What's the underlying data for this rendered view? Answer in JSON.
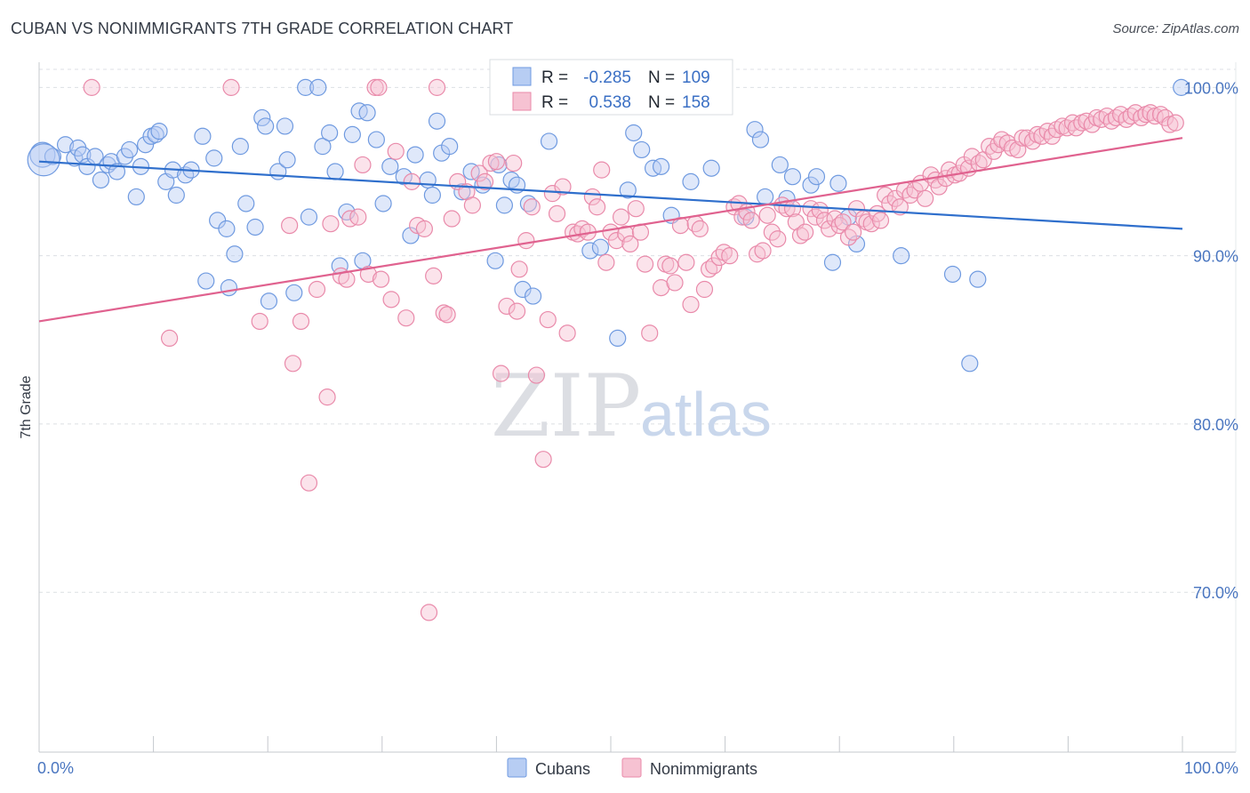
{
  "title": "CUBAN VS NONIMMIGRANTS 7TH GRADE CORRELATION CHART",
  "source": "Source: ZipAtlas.com",
  "watermark": {
    "zip": "ZIP",
    "atlas": "atlas"
  },
  "chart_data": {
    "type": "scatter",
    "title": "CUBAN VS NONIMMIGRANTS 7TH GRADE CORRELATION CHART",
    "xlabel": "",
    "ylabel": "7th Grade",
    "xlim": [
      0,
      100
    ],
    "ylim": [
      60.5,
      101.5
    ],
    "x_ticks": [
      {
        "value": 0,
        "label": "0.0%"
      },
      {
        "value": 100,
        "label": "100.0%"
      }
    ],
    "y_ticks": [
      {
        "value": 100,
        "label": "100.0%"
      },
      {
        "value": 90,
        "label": "90.0%"
      },
      {
        "value": 80,
        "label": "80.0%"
      },
      {
        "value": 70,
        "label": "70.0%"
      }
    ],
    "grid": true,
    "legend_position": "bottom-center",
    "stats": [
      {
        "r_label": "R =",
        "r": "-0.285",
        "n_label": "N =",
        "n": "109"
      },
      {
        "r_label": "R =",
        "r": "0.538",
        "n_label": "N =",
        "n": "158"
      }
    ],
    "series": [
      {
        "name": "Cubans",
        "color": "#6f9ae0",
        "fill": "#b7cdf3",
        "trend": [
          [
            0,
            95.6
          ],
          [
            100,
            91.6
          ]
        ],
        "points": [
          [
            0.3,
            96.0
          ],
          [
            1.2,
            95.9
          ],
          [
            2.3,
            96.6
          ],
          [
            3.1,
            95.8
          ],
          [
            3.4,
            96.4
          ],
          [
            3.8,
            96.0
          ],
          [
            4.2,
            95.3
          ],
          [
            4.9,
            95.9
          ],
          [
            5.4,
            94.5
          ],
          [
            6.0,
            95.4
          ],
          [
            6.3,
            95.6
          ],
          [
            6.8,
            95.0
          ],
          [
            7.5,
            95.9
          ],
          [
            7.9,
            96.3
          ],
          [
            8.5,
            93.5
          ],
          [
            8.9,
            95.3
          ],
          [
            9.3,
            96.6
          ],
          [
            9.8,
            97.1
          ],
          [
            10.2,
            97.2
          ],
          [
            10.5,
            97.4
          ],
          [
            11.1,
            94.4
          ],
          [
            11.7,
            95.1
          ],
          [
            12.0,
            93.6
          ],
          [
            12.8,
            94.8
          ],
          [
            13.3,
            95.1
          ],
          [
            14.3,
            97.1
          ],
          [
            14.6,
            88.5
          ],
          [
            15.3,
            95.8
          ],
          [
            15.6,
            92.1
          ],
          [
            16.4,
            91.6
          ],
          [
            16.6,
            88.1
          ],
          [
            17.1,
            90.1
          ],
          [
            17.6,
            96.5
          ],
          [
            18.1,
            93.1
          ],
          [
            18.9,
            91.7
          ],
          [
            19.5,
            98.2
          ],
          [
            19.8,
            97.7
          ],
          [
            20.1,
            87.3
          ],
          [
            20.9,
            95.0
          ],
          [
            21.5,
            97.7
          ],
          [
            21.7,
            95.7
          ],
          [
            22.3,
            87.8
          ],
          [
            23.3,
            100.0
          ],
          [
            23.6,
            92.3
          ],
          [
            24.4,
            100.0
          ],
          [
            24.8,
            96.5
          ],
          [
            25.4,
            97.3
          ],
          [
            25.9,
            95.0
          ],
          [
            26.3,
            89.4
          ],
          [
            26.9,
            92.6
          ],
          [
            27.4,
            97.2
          ],
          [
            28.0,
            98.6
          ],
          [
            28.3,
            89.7
          ],
          [
            28.7,
            98.5
          ],
          [
            29.5,
            96.9
          ],
          [
            30.1,
            93.1
          ],
          [
            30.7,
            95.3
          ],
          [
            31.9,
            94.7
          ],
          [
            32.5,
            91.2
          ],
          [
            32.9,
            96.0
          ],
          [
            34.0,
            94.5
          ],
          [
            34.4,
            93.6
          ],
          [
            34.8,
            98.0
          ],
          [
            35.2,
            96.1
          ],
          [
            35.9,
            96.5
          ],
          [
            37.0,
            93.8
          ],
          [
            37.8,
            95.0
          ],
          [
            38.8,
            94.2
          ],
          [
            39.9,
            89.7
          ],
          [
            40.2,
            95.4
          ],
          [
            40.7,
            93.0
          ],
          [
            41.3,
            94.5
          ],
          [
            41.8,
            94.2
          ],
          [
            42.3,
            88.0
          ],
          [
            42.8,
            93.1
          ],
          [
            43.2,
            87.6
          ],
          [
            44.6,
            96.8
          ],
          [
            48.2,
            90.3
          ],
          [
            49.1,
            90.5
          ],
          [
            50.6,
            85.1
          ],
          [
            51.5,
            93.9
          ],
          [
            52.0,
            97.3
          ],
          [
            52.7,
            96.3
          ],
          [
            53.7,
            95.2
          ],
          [
            54.4,
            95.3
          ],
          [
            55.3,
            92.4
          ],
          [
            57.0,
            94.4
          ],
          [
            58.8,
            95.2
          ],
          [
            61.8,
            92.3
          ],
          [
            62.6,
            97.5
          ],
          [
            63.1,
            96.9
          ],
          [
            63.5,
            93.5
          ],
          [
            64.8,
            95.4
          ],
          [
            65.4,
            93.4
          ],
          [
            65.9,
            94.7
          ],
          [
            67.5,
            94.2
          ],
          [
            68.0,
            94.7
          ],
          [
            69.4,
            89.6
          ],
          [
            69.9,
            94.3
          ],
          [
            70.8,
            92.3
          ],
          [
            71.5,
            90.7
          ],
          [
            75.4,
            90.0
          ],
          [
            79.9,
            88.9
          ],
          [
            82.1,
            88.6
          ],
          [
            81.4,
            83.6
          ],
          [
            0.4,
            95.7
          ],
          [
            99.9,
            100.0
          ]
        ]
      },
      {
        "name": "Nonimmigrants",
        "color": "#e98aaa",
        "fill": "#f6c2d2",
        "trend": [
          [
            0,
            86.1
          ],
          [
            100,
            97.0
          ]
        ],
        "points": [
          [
            4.6,
            100.0
          ],
          [
            11.4,
            85.1
          ],
          [
            16.8,
            100.0
          ],
          [
            19.3,
            86.1
          ],
          [
            21.9,
            91.8
          ],
          [
            22.2,
            83.6
          ],
          [
            22.9,
            86.1
          ],
          [
            23.6,
            76.5
          ],
          [
            24.3,
            88.0
          ],
          [
            25.2,
            81.6
          ],
          [
            25.5,
            91.9
          ],
          [
            26.4,
            88.8
          ],
          [
            26.9,
            88.6
          ],
          [
            27.2,
            92.2
          ],
          [
            27.9,
            92.3
          ],
          [
            28.3,
            95.4
          ],
          [
            28.8,
            88.9
          ],
          [
            29.4,
            100.0
          ],
          [
            29.7,
            100.0
          ],
          [
            29.9,
            88.6
          ],
          [
            30.8,
            87.4
          ],
          [
            31.2,
            96.2
          ],
          [
            32.1,
            86.3
          ],
          [
            32.6,
            94.4
          ],
          [
            33.1,
            91.8
          ],
          [
            33.7,
            91.6
          ],
          [
            34.1,
            68.8
          ],
          [
            34.5,
            88.8
          ],
          [
            34.8,
            100.0
          ],
          [
            35.4,
            86.6
          ],
          [
            35.7,
            86.5
          ],
          [
            36.1,
            92.2
          ],
          [
            36.6,
            94.4
          ],
          [
            37.4,
            93.8
          ],
          [
            37.9,
            93.0
          ],
          [
            38.5,
            94.9
          ],
          [
            39.0,
            94.4
          ],
          [
            39.5,
            95.5
          ],
          [
            40.0,
            95.6
          ],
          [
            40.4,
            83.0
          ],
          [
            40.9,
            87.0
          ],
          [
            41.5,
            95.5
          ],
          [
            41.8,
            86.7
          ],
          [
            42.0,
            89.2
          ],
          [
            42.6,
            90.9
          ],
          [
            43.1,
            92.9
          ],
          [
            43.5,
            82.9
          ],
          [
            44.1,
            77.9
          ],
          [
            44.5,
            86.2
          ],
          [
            44.9,
            93.7
          ],
          [
            45.3,
            92.5
          ],
          [
            45.8,
            94.1
          ],
          [
            46.2,
            85.4
          ],
          [
            46.7,
            91.4
          ],
          [
            47.1,
            91.3
          ],
          [
            47.5,
            91.6
          ],
          [
            48.0,
            91.4
          ],
          [
            48.4,
            93.5
          ],
          [
            48.8,
            92.9
          ],
          [
            49.2,
            95.1
          ],
          [
            49.6,
            89.6
          ],
          [
            50.0,
            91.4
          ],
          [
            50.5,
            90.9
          ],
          [
            50.9,
            92.3
          ],
          [
            51.3,
            91.3
          ],
          [
            51.7,
            90.7
          ],
          [
            52.2,
            92.8
          ],
          [
            52.6,
            91.4
          ],
          [
            53.0,
            89.5
          ],
          [
            53.4,
            85.4
          ],
          [
            54.4,
            88.1
          ],
          [
            54.8,
            89.5
          ],
          [
            55.2,
            89.4
          ],
          [
            55.6,
            88.4
          ],
          [
            56.1,
            91.8
          ],
          [
            56.6,
            89.6
          ],
          [
            57.0,
            87.1
          ],
          [
            57.4,
            91.9
          ],
          [
            57.8,
            91.6
          ],
          [
            58.2,
            88.0
          ],
          [
            58.6,
            89.2
          ],
          [
            59.0,
            89.4
          ],
          [
            59.5,
            89.9
          ],
          [
            59.9,
            90.2
          ],
          [
            60.4,
            90.0
          ],
          [
            60.8,
            92.9
          ],
          [
            61.2,
            93.1
          ],
          [
            61.5,
            92.3
          ],
          [
            61.9,
            92.6
          ],
          [
            62.3,
            92.1
          ],
          [
            62.8,
            90.1
          ],
          [
            63.3,
            90.3
          ],
          [
            63.7,
            92.4
          ],
          [
            64.1,
            91.4
          ],
          [
            64.6,
            91.0
          ],
          [
            65.0,
            93.0
          ],
          [
            65.4,
            92.8
          ],
          [
            65.9,
            92.8
          ],
          [
            66.2,
            92.0
          ],
          [
            66.6,
            91.2
          ],
          [
            67.0,
            91.4
          ],
          [
            67.5,
            92.8
          ],
          [
            67.9,
            92.3
          ],
          [
            68.3,
            92.7
          ],
          [
            68.7,
            92.1
          ],
          [
            69.1,
            91.6
          ],
          [
            69.6,
            92.2
          ],
          [
            70.0,
            91.8
          ],
          [
            70.3,
            92.0
          ],
          [
            70.8,
            91.1
          ],
          [
            71.2,
            91.4
          ],
          [
            71.5,
            92.8
          ],
          [
            72.1,
            92.2
          ],
          [
            72.4,
            92.0
          ],
          [
            72.8,
            91.9
          ],
          [
            73.3,
            92.5
          ],
          [
            73.6,
            92.1
          ],
          [
            74.0,
            93.6
          ],
          [
            74.4,
            93.1
          ],
          [
            74.9,
            93.4
          ],
          [
            75.3,
            92.9
          ],
          [
            75.7,
            93.9
          ],
          [
            76.2,
            93.6
          ],
          [
            76.6,
            93.9
          ],
          [
            77.1,
            94.3
          ],
          [
            77.5,
            93.4
          ],
          [
            78.0,
            94.8
          ],
          [
            78.4,
            94.5
          ],
          [
            78.7,
            94.1
          ],
          [
            79.3,
            94.6
          ],
          [
            79.6,
            95.1
          ],
          [
            80.1,
            94.8
          ],
          [
            80.5,
            94.9
          ],
          [
            80.9,
            95.4
          ],
          [
            81.3,
            95.2
          ],
          [
            81.6,
            95.9
          ],
          [
            82.2,
            95.5
          ],
          [
            82.6,
            95.7
          ],
          [
            83.1,
            96.5
          ],
          [
            83.5,
            96.2
          ],
          [
            83.9,
            96.6
          ],
          [
            84.2,
            96.9
          ],
          [
            84.7,
            96.7
          ],
          [
            85.1,
            96.4
          ],
          [
            85.6,
            96.3
          ],
          [
            86.0,
            97.0
          ],
          [
            86.4,
            97.0
          ],
          [
            86.9,
            96.8
          ],
          [
            87.3,
            97.2
          ],
          [
            87.7,
            97.1
          ],
          [
            88.2,
            97.4
          ],
          [
            88.6,
            97.1
          ],
          [
            89.0,
            97.5
          ],
          [
            89.5,
            97.7
          ],
          [
            89.9,
            97.6
          ],
          [
            90.4,
            97.9
          ],
          [
            90.7,
            97.6
          ],
          [
            91.2,
            97.9
          ],
          [
            91.6,
            98.0
          ],
          [
            92.1,
            97.8
          ],
          [
            92.5,
            98.2
          ],
          [
            92.9,
            98.1
          ],
          [
            93.4,
            98.3
          ],
          [
            93.8,
            98.0
          ],
          [
            94.2,
            98.2
          ],
          [
            94.6,
            98.4
          ],
          [
            95.1,
            98.1
          ],
          [
            95.5,
            98.3
          ],
          [
            95.9,
            98.5
          ],
          [
            96.4,
            98.2
          ],
          [
            96.8,
            98.4
          ],
          [
            97.2,
            98.5
          ],
          [
            97.6,
            98.3
          ],
          [
            98.1,
            98.4
          ],
          [
            98.5,
            98.2
          ],
          [
            98.9,
            97.8
          ],
          [
            99.4,
            97.9
          ]
        ]
      }
    ]
  }
}
